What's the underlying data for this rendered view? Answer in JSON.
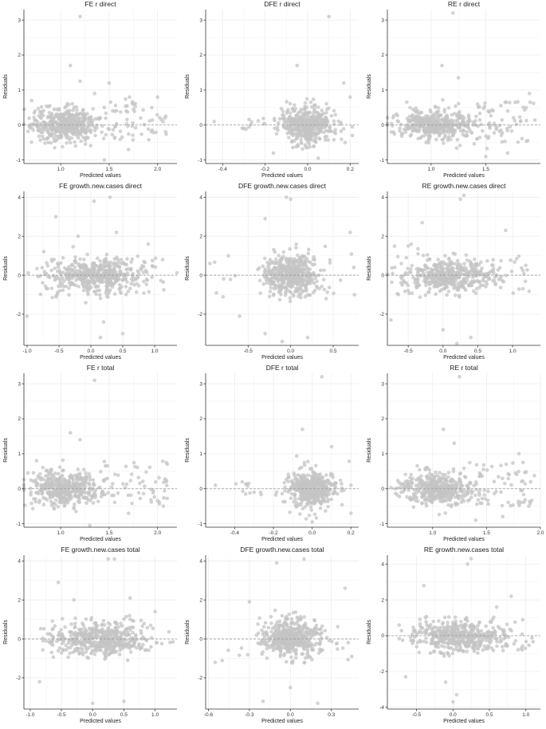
{
  "colors": {
    "points": "#c4c4c4",
    "grid": "#ececec",
    "axis": "#333333",
    "zero_line": "#9a9a9a"
  },
  "chart_data": [
    {
      "type": "scatter",
      "title": "FE r direct",
      "xlabel": "Predicted values",
      "ylabel": "Residuals",
      "xlim": [
        0.62,
        2.2
      ],
      "ylim": [
        -1.1,
        3.3
      ],
      "xticks": [
        1.0,
        1.5,
        2.0
      ],
      "yticks": [
        -1,
        0,
        1,
        2,
        3
      ],
      "xtick_labels": [
        "1.0",
        "1.5",
        "2.0"
      ],
      "ytick_labels": [
        "-1",
        "0",
        "1",
        "2",
        "3"
      ],
      "center": [
        1.05,
        0.0
      ],
      "spread": [
        0.18,
        0.22
      ],
      "n": 440,
      "tail": {
        "x": [
          1.4,
          2.1
        ],
        "y": [
          -0.5,
          0.8
        ],
        "n": 60
      },
      "outliers": [
        [
          1.2,
          3.1
        ],
        [
          1.1,
          1.7
        ],
        [
          1.35,
          0.9
        ],
        [
          1.5,
          1.2
        ],
        [
          1.7,
          -0.7
        ],
        [
          2.0,
          0.8
        ],
        [
          1.45,
          -1.0
        ],
        [
          1.2,
          1.25
        ],
        [
          0.7,
          0.7
        ]
      ],
      "grid": true
    },
    {
      "type": "scatter",
      "title": "DFE r direct",
      "xlabel": "Predicted values",
      "ylabel": "Residuals",
      "xlim": [
        -0.48,
        0.24
      ],
      "ylim": [
        -1.1,
        3.3
      ],
      "xticks": [
        -0.4,
        -0.2,
        0.0,
        0.2
      ],
      "yticks": [
        -1,
        0,
        1,
        2,
        3
      ],
      "xtick_labels": [
        "-0.4",
        "-0.2",
        "0.0",
        "0.2"
      ],
      "ytick_labels": [
        "-1",
        "0",
        "1",
        "2",
        "3"
      ],
      "center": [
        0.0,
        0.0
      ],
      "spread": [
        0.06,
        0.25
      ],
      "n": 460,
      "tail": {
        "x": [
          -0.35,
          -0.15
        ],
        "y": [
          -0.2,
          0.2
        ],
        "n": 12
      },
      "outliers": [
        [
          0.1,
          3.1
        ],
        [
          -0.05,
          1.7
        ],
        [
          0.17,
          1.2
        ],
        [
          0.2,
          0.8
        ],
        [
          -0.44,
          0.1
        ],
        [
          -0.3,
          -0.1
        ],
        [
          0.21,
          -0.3
        ],
        [
          0.05,
          -0.95
        ]
      ],
      "grid": true
    },
    {
      "type": "scatter",
      "title": "RE r direct",
      "xlabel": "Predicted values",
      "ylabel": "Residuals",
      "xlim": [
        0.6,
        2.0
      ],
      "ylim": [
        -1.1,
        3.3
      ],
      "xticks": [
        1.0,
        1.5
      ],
      "yticks": [
        -1,
        0,
        1,
        2,
        3
      ],
      "xtick_labels": [
        "1.0",
        "1.5"
      ],
      "ytick_labels": [
        "-1",
        "0",
        "1",
        "2",
        "3"
      ],
      "center": [
        1.05,
        0.0
      ],
      "spread": [
        0.17,
        0.22
      ],
      "n": 420,
      "tail": {
        "x": [
          1.4,
          1.95
        ],
        "y": [
          -0.5,
          0.8
        ],
        "n": 60
      },
      "outliers": [
        [
          1.2,
          3.2
        ],
        [
          1.1,
          1.7
        ],
        [
          1.25,
          1.35
        ],
        [
          1.9,
          0.9
        ],
        [
          1.7,
          -0.8
        ],
        [
          0.7,
          0.1
        ],
        [
          1.5,
          -0.9
        ]
      ],
      "grid": true
    },
    {
      "type": "scatter",
      "title": "FE growth.new.cases direct",
      "xlabel": "Predicted values",
      "ylabel": "Residuals",
      "xlim": [
        -1.05,
        1.35
      ],
      "ylim": [
        -3.6,
        4.3
      ],
      "xticks": [
        -1.0,
        -0.5,
        0.0,
        0.5,
        1.0
      ],
      "yticks": [
        -2,
        0,
        2,
        4
      ],
      "xtick_labels": [
        "-1.0",
        "-0.5",
        "0.0",
        "0.5",
        "1.0"
      ],
      "ytick_labels": [
        "-2",
        "0",
        "2",
        "4"
      ],
      "center": [
        0.1,
        0.0
      ],
      "spread": [
        0.38,
        0.42
      ],
      "n": 480,
      "tail": {
        "x": [
          -1.0,
          1.3
        ],
        "y": [
          -1.0,
          1.0
        ],
        "n": 40
      },
      "outliers": [
        [
          0.3,
          4.0
        ],
        [
          0.05,
          3.8
        ],
        [
          -0.55,
          3.0
        ],
        [
          -1.0,
          -2.1
        ],
        [
          0.2,
          -2.4
        ],
        [
          0.15,
          -3.2
        ],
        [
          0.5,
          -3.0
        ],
        [
          0.4,
          2.2
        ],
        [
          -0.2,
          2.0
        ],
        [
          0.9,
          1.6
        ]
      ],
      "grid": true
    },
    {
      "type": "scatter",
      "title": "DFE growth.new.cases direct",
      "xlabel": "Predicted values",
      "ylabel": "Residuals",
      "xlim": [
        -1.0,
        0.8
      ],
      "ylim": [
        -3.6,
        4.3
      ],
      "xticks": [
        -0.5,
        0.0,
        0.5
      ],
      "yticks": [
        -2,
        0,
        2,
        4
      ],
      "xtick_labels": [
        "-0.5",
        "0.0",
        "0.5"
      ],
      "ytick_labels": [
        "-2",
        "0",
        "2",
        "4"
      ],
      "center": [
        0.0,
        0.0
      ],
      "spread": [
        0.15,
        0.5
      ],
      "n": 460,
      "tail": {
        "x": [
          -0.9,
          0.75
        ],
        "y": [
          -1.5,
          1.5
        ],
        "n": 25
      },
      "outliers": [
        [
          -0.05,
          4.0
        ],
        [
          0.0,
          3.9
        ],
        [
          -0.3,
          2.9
        ],
        [
          0.7,
          2.2
        ],
        [
          -0.95,
          0.6
        ],
        [
          -0.1,
          -3.4
        ],
        [
          0.2,
          -3.2
        ],
        [
          -0.3,
          -3.0
        ],
        [
          -0.6,
          -2.1
        ],
        [
          0.75,
          -1.0
        ]
      ],
      "grid": true
    },
    {
      "type": "scatter",
      "title": "RE growth.new.cases direct",
      "xlabel": "Predicted values",
      "ylabel": "Residuals",
      "xlim": [
        -0.8,
        1.4
      ],
      "ylim": [
        -3.6,
        4.3
      ],
      "xticks": [
        -0.5,
        0.0,
        0.5,
        1.0
      ],
      "yticks": [
        -2,
        0,
        2,
        4
      ],
      "xtick_labels": [
        "-0.5",
        "0.0",
        "0.5",
        "1.0"
      ],
      "ytick_labels": [
        "-2",
        "0",
        "2",
        "4"
      ],
      "center": [
        0.1,
        0.0
      ],
      "spread": [
        0.32,
        0.42
      ],
      "n": 460,
      "tail": {
        "x": [
          -0.7,
          1.3
        ],
        "y": [
          -1.0,
          1.0
        ],
        "n": 40
      },
      "outliers": [
        [
          0.3,
          4.1
        ],
        [
          0.25,
          3.9
        ],
        [
          -0.3,
          2.7
        ],
        [
          -0.75,
          -2.3
        ],
        [
          0.2,
          -3.5
        ],
        [
          0.0,
          -2.8
        ],
        [
          0.4,
          -3.2
        ],
        [
          0.9,
          2.3
        ],
        [
          -0.5,
          1.5
        ]
      ],
      "grid": true
    },
    {
      "type": "scatter",
      "title": "FE r total",
      "xlabel": "Predicted values",
      "ylabel": "Residuals",
      "xlim": [
        0.62,
        2.2
      ],
      "ylim": [
        -1.1,
        3.3
      ],
      "xticks": [
        1.0,
        1.5,
        2.0
      ],
      "yticks": [
        -1,
        0,
        1,
        2,
        3
      ],
      "xtick_labels": [
        "1.0",
        "1.5",
        "2.0"
      ],
      "ytick_labels": [
        "-1",
        "0",
        "1",
        "2",
        "3"
      ],
      "center": [
        1.05,
        0.0
      ],
      "spread": [
        0.18,
        0.22
      ],
      "n": 440,
      "tail": {
        "x": [
          1.4,
          2.1
        ],
        "y": [
          -0.5,
          0.8
        ],
        "n": 60
      },
      "outliers": [
        [
          1.35,
          3.1
        ],
        [
          1.1,
          1.6
        ],
        [
          1.2,
          1.4
        ],
        [
          2.1,
          0.7
        ],
        [
          1.7,
          -0.7
        ],
        [
          1.3,
          -1.05
        ],
        [
          0.75,
          0.8
        ]
      ],
      "grid": true
    },
    {
      "type": "scatter",
      "title": "DFE r total",
      "xlabel": "Predicted values",
      "ylabel": "Residuals",
      "xlim": [
        -0.55,
        0.24
      ],
      "ylim": [
        -1.1,
        3.3
      ],
      "xticks": [
        -0.4,
        -0.2,
        0.0,
        0.2
      ],
      "yticks": [
        -1,
        0,
        1,
        2,
        3
      ],
      "xtick_labels": [
        "-0.4",
        "-0.2",
        "0.0",
        "0.2"
      ],
      "ytick_labels": [
        "-1",
        "0",
        "1",
        "2",
        "3"
      ],
      "center": [
        0.0,
        0.0
      ],
      "spread": [
        0.06,
        0.25
      ],
      "n": 460,
      "tail": {
        "x": [
          -0.4,
          -0.15
        ],
        "y": [
          -0.2,
          0.2
        ],
        "n": 12
      },
      "outliers": [
        [
          0.05,
          3.2
        ],
        [
          -0.05,
          1.7
        ],
        [
          0.1,
          1.2
        ],
        [
          0.2,
          0.1
        ],
        [
          -0.5,
          0.1
        ],
        [
          -0.3,
          -0.1
        ],
        [
          0.2,
          -0.7
        ],
        [
          0.0,
          -0.95
        ]
      ],
      "grid": true
    },
    {
      "type": "scatter",
      "title": "RE r total",
      "xlabel": "Predicted values",
      "ylabel": "Residuals",
      "xlim": [
        0.58,
        2.0
      ],
      "ylim": [
        -1.1,
        3.3
      ],
      "xticks": [
        1.0,
        1.5,
        2.0
      ],
      "yticks": [
        -1,
        0,
        1,
        2,
        3
      ],
      "xtick_labels": [
        "1.0",
        "1.5",
        "2.0"
      ],
      "ytick_labels": [
        "-1",
        "0",
        "1",
        "2",
        "3"
      ],
      "center": [
        1.05,
        0.0
      ],
      "spread": [
        0.17,
        0.22
      ],
      "n": 420,
      "tail": {
        "x": [
          1.4,
          1.95
        ],
        "y": [
          -0.5,
          0.8
        ],
        "n": 60
      },
      "outliers": [
        [
          1.25,
          3.2
        ],
        [
          1.1,
          1.7
        ],
        [
          1.2,
          1.3
        ],
        [
          1.8,
          1.0
        ],
        [
          1.65,
          -0.8
        ],
        [
          0.65,
          0.0
        ],
        [
          1.4,
          -0.9
        ]
      ],
      "grid": true
    },
    {
      "type": "scatter",
      "title": "FE growth.new.cases total",
      "xlabel": "Predicted values",
      "ylabel": "Residuals",
      "xlim": [
        -1.1,
        1.35
      ],
      "ylim": [
        -3.6,
        4.3
      ],
      "xticks": [
        -1.0,
        -0.5,
        0.0,
        0.5,
        1.0
      ],
      "yticks": [
        -2,
        0,
        2,
        4
      ],
      "xtick_labels": [
        "-1.0",
        "-0.5",
        "0.0",
        "0.5",
        "1.0"
      ],
      "ytick_labels": [
        "-2",
        "0",
        "2",
        "4"
      ],
      "center": [
        0.1,
        0.0
      ],
      "spread": [
        0.38,
        0.42
      ],
      "n": 480,
      "tail": {
        "x": [
          -1.0,
          1.3
        ],
        "y": [
          -1.0,
          1.0
        ],
        "n": 40
      },
      "outliers": [
        [
          0.25,
          4.1
        ],
        [
          0.35,
          4.1
        ],
        [
          -0.55,
          2.9
        ],
        [
          -0.85,
          -2.2
        ],
        [
          0.0,
          -3.3
        ],
        [
          0.5,
          -3.2
        ],
        [
          0.6,
          2.1
        ],
        [
          -0.3,
          2.0
        ],
        [
          1.0,
          1.4
        ]
      ],
      "grid": true
    },
    {
      "type": "scatter",
      "title": "DFE growth.new.cases total",
      "xlabel": "Predicted values",
      "ylabel": "Residuals",
      "xlim": [
        -0.62,
        0.5
      ],
      "ylim": [
        -3.6,
        4.3
      ],
      "xticks": [
        -0.6,
        -0.3,
        0.0,
        0.3
      ],
      "yticks": [
        -2,
        0,
        2,
        4
      ],
      "xtick_labels": [
        "-0.6",
        "-0.3",
        "0.0",
        "0.3"
      ],
      "ytick_labels": [
        "-2",
        "0",
        "2",
        "4"
      ],
      "center": [
        0.0,
        0.0
      ],
      "spread": [
        0.1,
        0.45
      ],
      "n": 470,
      "tail": {
        "x": [
          -0.55,
          0.45
        ],
        "y": [
          -1.2,
          1.2
        ],
        "n": 30
      },
      "outliers": [
        [
          -0.1,
          3.9
        ],
        [
          0.1,
          4.1
        ],
        [
          -0.3,
          1.9
        ],
        [
          0.4,
          2.6
        ],
        [
          -0.55,
          -1.2
        ],
        [
          -0.2,
          -3.2
        ],
        [
          0.2,
          -3.3
        ],
        [
          0.0,
          -2.5
        ],
        [
          0.45,
          -0.9
        ]
      ],
      "grid": true
    },
    {
      "type": "scatter",
      "title": "RE growth.new.cases total",
      "xlabel": "Predicted values",
      "ylabel": "Residuals",
      "xlim": [
        -0.9,
        1.2
      ],
      "ylim": [
        -4.1,
        4.5
      ],
      "xticks": [
        -0.5,
        0.0,
        0.5,
        1.0
      ],
      "yticks": [
        -4,
        -2,
        0,
        2,
        4
      ],
      "xtick_labels": [
        "-0.5",
        "0.0",
        "0.5",
        "1.0"
      ],
      "ytick_labels": [
        "-4",
        "-2",
        "0",
        "2",
        "4"
      ],
      "center": [
        0.1,
        0.0
      ],
      "spread": [
        0.3,
        0.42
      ],
      "n": 460,
      "tail": {
        "x": [
          -0.7,
          1.1
        ],
        "y": [
          -1.0,
          1.0
        ],
        "n": 40
      },
      "outliers": [
        [
          0.25,
          4.3
        ],
        [
          0.2,
          4.0
        ],
        [
          -0.4,
          2.8
        ],
        [
          -0.65,
          -2.3
        ],
        [
          0.0,
          -3.7
        ],
        [
          0.05,
          -3.3
        ],
        [
          -0.1,
          -2.6
        ],
        [
          0.8,
          2.2
        ],
        [
          0.6,
          1.6
        ]
      ],
      "grid": true
    }
  ]
}
